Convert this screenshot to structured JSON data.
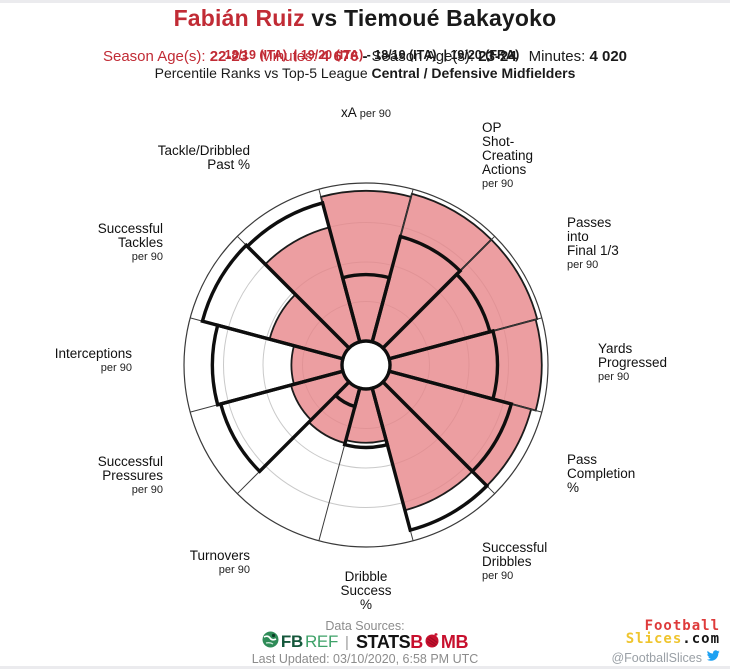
{
  "colors": {
    "accent_red": "#C12B35",
    "pink_fill": "#E78689",
    "pink_rendered": "#EC9EA1",
    "outline_black": "#0E0E0E",
    "ring_gray": "#C9C9C9",
    "axis_gray": "#3A3A3A",
    "muted": "#8C8C8C",
    "fbref_dark": "#15573B",
    "fbref_light": "#3FA269",
    "statsbomb_red": "#C8102E",
    "slices_yellow": "#EFC52F",
    "twitter_blue": "#1DA1F2"
  },
  "header": {
    "player1": "Fabián Ruiz",
    "vs": " vs ",
    "player2": "Tiemoué Bakayoko",
    "p1_seasons": "18/19 (ITA)  | 19/20 (ITA)",
    "seasons_sep": " - ",
    "p2_seasons": "18/19 (ITA)  | 19/20 (FRA)",
    "p1_age_label": "Season Age(s): ",
    "p1_age": "22-23",
    "p1_min_label": "Minutes: ",
    "p1_min": "4 676",
    "meta_sep": "-",
    "p2_age_label": "Season Age(s): ",
    "p2_age": "23-24",
    "p2_min_label": "Minutes: ",
    "p2_min": "4 020",
    "subtitle_regular": "Percentile Ranks vs Top-5 League ",
    "subtitle_bold": "Central / Defensive Midfielders"
  },
  "chart_data": {
    "type": "pizza-comparison-radar",
    "scale": [
      0,
      100
    ],
    "rings_percentiles": [
      25,
      50,
      75,
      100
    ],
    "slice_span_degrees": 30,
    "first_slice_direction": "up",
    "categories": [
      "xA per 90",
      "OP Shot-Creating Actions per 90",
      "Passes into Final 1/3 per 90",
      "Yards Progressed per 90",
      "Pass Completion %",
      "Successful Dribbles per 90",
      "Dribble Success %",
      "Turnovers per 90",
      "Successful Pressures per 90",
      "Interceptions per 90",
      "Successful Tackles per 90",
      "Tackle/Dribbled Past %"
    ],
    "series": [
      {
        "name": "Fabián Ruiz",
        "style": "pink-filled-wedges",
        "values": [
          95,
          97,
          97,
          96,
          93,
          80,
          34,
          36,
          34,
          32,
          48,
          75
        ]
      },
      {
        "name": "Tiemoué Bakayoko",
        "style": "black-outlined-wedges",
        "values": [
          42,
          69,
          66,
          68,
          80,
          93,
          37,
          12,
          80,
          82,
          92,
          91
        ]
      }
    ],
    "slices": [
      {
        "label_lines": [
          "xA"
        ],
        "sub": "per 90",
        "inline_sub": true
      },
      {
        "label_lines": [
          "OP",
          "Shot-",
          "Creating",
          "Actions"
        ],
        "sub": "per 90"
      },
      {
        "label_lines": [
          "Passes",
          "into",
          "Final 1/3"
        ],
        "sub": "per 90"
      },
      {
        "label_lines": [
          "Yards",
          "Progressed"
        ],
        "sub": "per 90"
      },
      {
        "label_lines": [
          "Pass",
          "Completion",
          "%"
        ],
        "sub": ""
      },
      {
        "label_lines": [
          "Successful",
          "Dribbles"
        ],
        "sub": "per 90"
      },
      {
        "label_lines": [
          "Dribble",
          "Success",
          "%"
        ],
        "sub": ""
      },
      {
        "label_lines": [
          "Turnovers"
        ],
        "sub": "per 90"
      },
      {
        "label_lines": [
          "Successful",
          "Pressures"
        ],
        "sub": "per 90"
      },
      {
        "label_lines": [
          "Interceptions"
        ],
        "sub": "per 90"
      },
      {
        "label_lines": [
          "Successful",
          "Tackles"
        ],
        "sub": "per 90"
      },
      {
        "label_lines": [
          "Tackle/Dribbled",
          "Past %"
        ],
        "sub": ""
      }
    ]
  },
  "footer": {
    "data_sources_label": "Data Sources:",
    "fbref_fb": "FB",
    "fbref_ref": "REF",
    "logo_divider": "|",
    "statsbomb_stats": "STATS",
    "statsbomb_b": "B",
    "statsbomb_mb": "MB",
    "last_updated": "Last Updated: 03/10/2020, 6:58 PM UTC",
    "brand_football": "Football",
    "brand_slices": "Slices",
    "brand_dotcom": ".com",
    "twitter_handle": "@FootballSlices"
  }
}
